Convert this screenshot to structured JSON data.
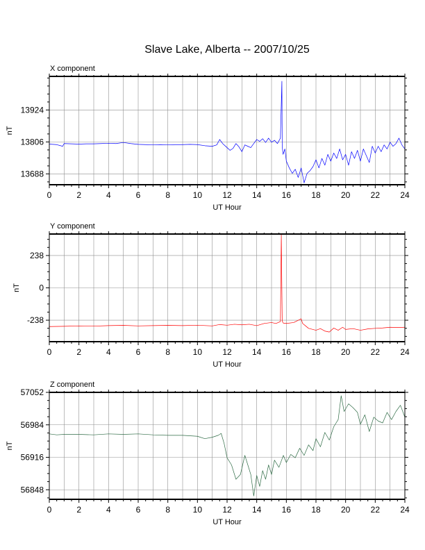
{
  "page": {
    "title": "Slave Lake, Alberta -- 2007/10/25"
  },
  "chart_data": [
    {
      "type": "line",
      "title": "X component",
      "xlabel": "UT Hour",
      "ylabel": "nT",
      "xlim": [
        0,
        24
      ],
      "ylim": [
        13648,
        14048
      ],
      "xticks": [
        0,
        2,
        4,
        6,
        8,
        10,
        12,
        14,
        16,
        18,
        20,
        22,
        24
      ],
      "yticks": [
        13688,
        13806,
        13924
      ],
      "grid": true,
      "color": "#0000ff",
      "series": [
        {
          "x": [
            0,
            0.5,
            0.9,
            1,
            1.5,
            2,
            2.5,
            3,
            3.5,
            4,
            4.5,
            5,
            5.5,
            6,
            6.5,
            7,
            7.5,
            8,
            8.5,
            9,
            9.5,
            10,
            10.5,
            11,
            11.3,
            11.5,
            11.7,
            12,
            12.2,
            12.4,
            12.6,
            12.8,
            13,
            13.2,
            13.4,
            13.6,
            13.8,
            14,
            14.2,
            14.4,
            14.6,
            14.8,
            15,
            15.2,
            15.4,
            15.6,
            15.7,
            15.72,
            15.78,
            15.9,
            16,
            16.2,
            16.4,
            16.6,
            16.8,
            17,
            17.2,
            17.4,
            17.6,
            17.8,
            18,
            18.2,
            18.4,
            18.6,
            18.8,
            19,
            19.2,
            19.4,
            19.6,
            19.8,
            20,
            20.2,
            20.4,
            20.6,
            20.8,
            21,
            21.2,
            21.4,
            21.6,
            21.8,
            22,
            22.2,
            22.4,
            22.6,
            22.8,
            23,
            23.2,
            23.4,
            23.6,
            23.8,
            24
          ],
          "y": [
            13798,
            13796,
            13790,
            13800,
            13799,
            13798,
            13799,
            13799,
            13800,
            13801,
            13800,
            13804,
            13800,
            13797,
            13796,
            13795,
            13796,
            13795,
            13796,
            13796,
            13797,
            13796,
            13792,
            13790,
            13795,
            13815,
            13800,
            13785,
            13775,
            13782,
            13800,
            13788,
            13770,
            13795,
            13790,
            13785,
            13800,
            13815,
            13808,
            13818,
            13804,
            13820,
            13805,
            13812,
            13800,
            13820,
            14030,
            13790,
            13760,
            13780,
            13735,
            13710,
            13690,
            13705,
            13675,
            13710,
            13655,
            13690,
            13700,
            13715,
            13740,
            13710,
            13745,
            13720,
            13760,
            13735,
            13765,
            13745,
            13780,
            13740,
            13760,
            13720,
            13770,
            13745,
            13775,
            13735,
            13780,
            13755,
            13730,
            13790,
            13765,
            13790,
            13770,
            13795,
            13780,
            13805,
            13790,
            13800,
            13820,
            13795,
            13780
          ]
        }
      ]
    },
    {
      "type": "line",
      "title": "Y component",
      "xlabel": "UT Hour",
      "ylabel": "nT",
      "xlim": [
        0,
        24
      ],
      "ylim": [
        -396,
        396
      ],
      "xticks": [
        0,
        2,
        4,
        6,
        8,
        10,
        12,
        14,
        16,
        18,
        20,
        22,
        24
      ],
      "yticks": [
        -238,
        0,
        238
      ],
      "grid": true,
      "color": "#ff0000",
      "series": [
        {
          "x": [
            0,
            1,
            2,
            3,
            4,
            5,
            6,
            7,
            8,
            9,
            10,
            11,
            11.5,
            12,
            12.5,
            13,
            13.5,
            14,
            14.5,
            15,
            15.3,
            15.6,
            15.66,
            15.72,
            15.8,
            16,
            16.5,
            17,
            17.1,
            17.3,
            17.5,
            18,
            18.3,
            18.6,
            18.9,
            19.2,
            19.5,
            19.8,
            20,
            20.5,
            21,
            21.5,
            22,
            22.5,
            23,
            23.5,
            24
          ],
          "y": [
            -285,
            -283,
            -280,
            -282,
            -278,
            -276,
            -280,
            -278,
            -276,
            -278,
            -275,
            -280,
            -270,
            -275,
            -268,
            -272,
            -268,
            -278,
            -262,
            -255,
            -262,
            -248,
            390,
            -245,
            -260,
            -262,
            -255,
            -228,
            -262,
            -280,
            -298,
            -312,
            -300,
            -318,
            -325,
            -296,
            -312,
            -290,
            -306,
            -300,
            -312,
            -302,
            -298,
            -295,
            -290,
            -292,
            -290
          ]
        }
      ]
    },
    {
      "type": "line",
      "title": "Z component",
      "xlabel": "UT Hour",
      "ylabel": "nT",
      "xlim": [
        0,
        24
      ],
      "ylim": [
        56828,
        57052
      ],
      "xticks": [
        0,
        2,
        4,
        6,
        8,
        10,
        12,
        14,
        16,
        18,
        20,
        22,
        24
      ],
      "yticks": [
        56848,
        56916,
        56984,
        57052
      ],
      "grid": true,
      "color": "#2e6b45",
      "series": [
        {
          "x": [
            0,
            0.5,
            1,
            2,
            3,
            4,
            5,
            6,
            7,
            8,
            9,
            10,
            10.5,
            11,
            11.4,
            11.6,
            11.8,
            12,
            12.3,
            12.6,
            12.9,
            13.2,
            13.4,
            13.6,
            13.8,
            14,
            14.2,
            14.4,
            14.6,
            14.8,
            15,
            15.2,
            15.5,
            15.8,
            16,
            16.3,
            16.6,
            16.9,
            17.2,
            17.5,
            17.8,
            18,
            18.3,
            18.6,
            18.9,
            19.2,
            19.5,
            19.7,
            19.9,
            20.2,
            20.5,
            20.8,
            21,
            21.3,
            21.6,
            21.9,
            22.2,
            22.5,
            22.8,
            23.1,
            23.4,
            23.7,
            24
          ],
          "y": [
            56965,
            56963,
            56964,
            56964,
            56963,
            56965,
            56964,
            56965,
            56963,
            56962,
            56962,
            56960,
            56955,
            56958,
            56962,
            56966,
            56945,
            56915,
            56900,
            56870,
            56880,
            56920,
            56900,
            56880,
            56835,
            56878,
            56855,
            56888,
            56870,
            56900,
            56880,
            56910,
            56895,
            56920,
            56905,
            56922,
            56915,
            56935,
            56920,
            56942,
            56930,
            56955,
            56938,
            56968,
            56952,
            56980,
            56995,
            57045,
            57012,
            57028,
            57020,
            57010,
            56985,
            57005,
            56970,
            57000,
            56992,
            56988,
            57010,
            56995,
            57012,
            57025,
            57000
          ]
        }
      ]
    }
  ]
}
